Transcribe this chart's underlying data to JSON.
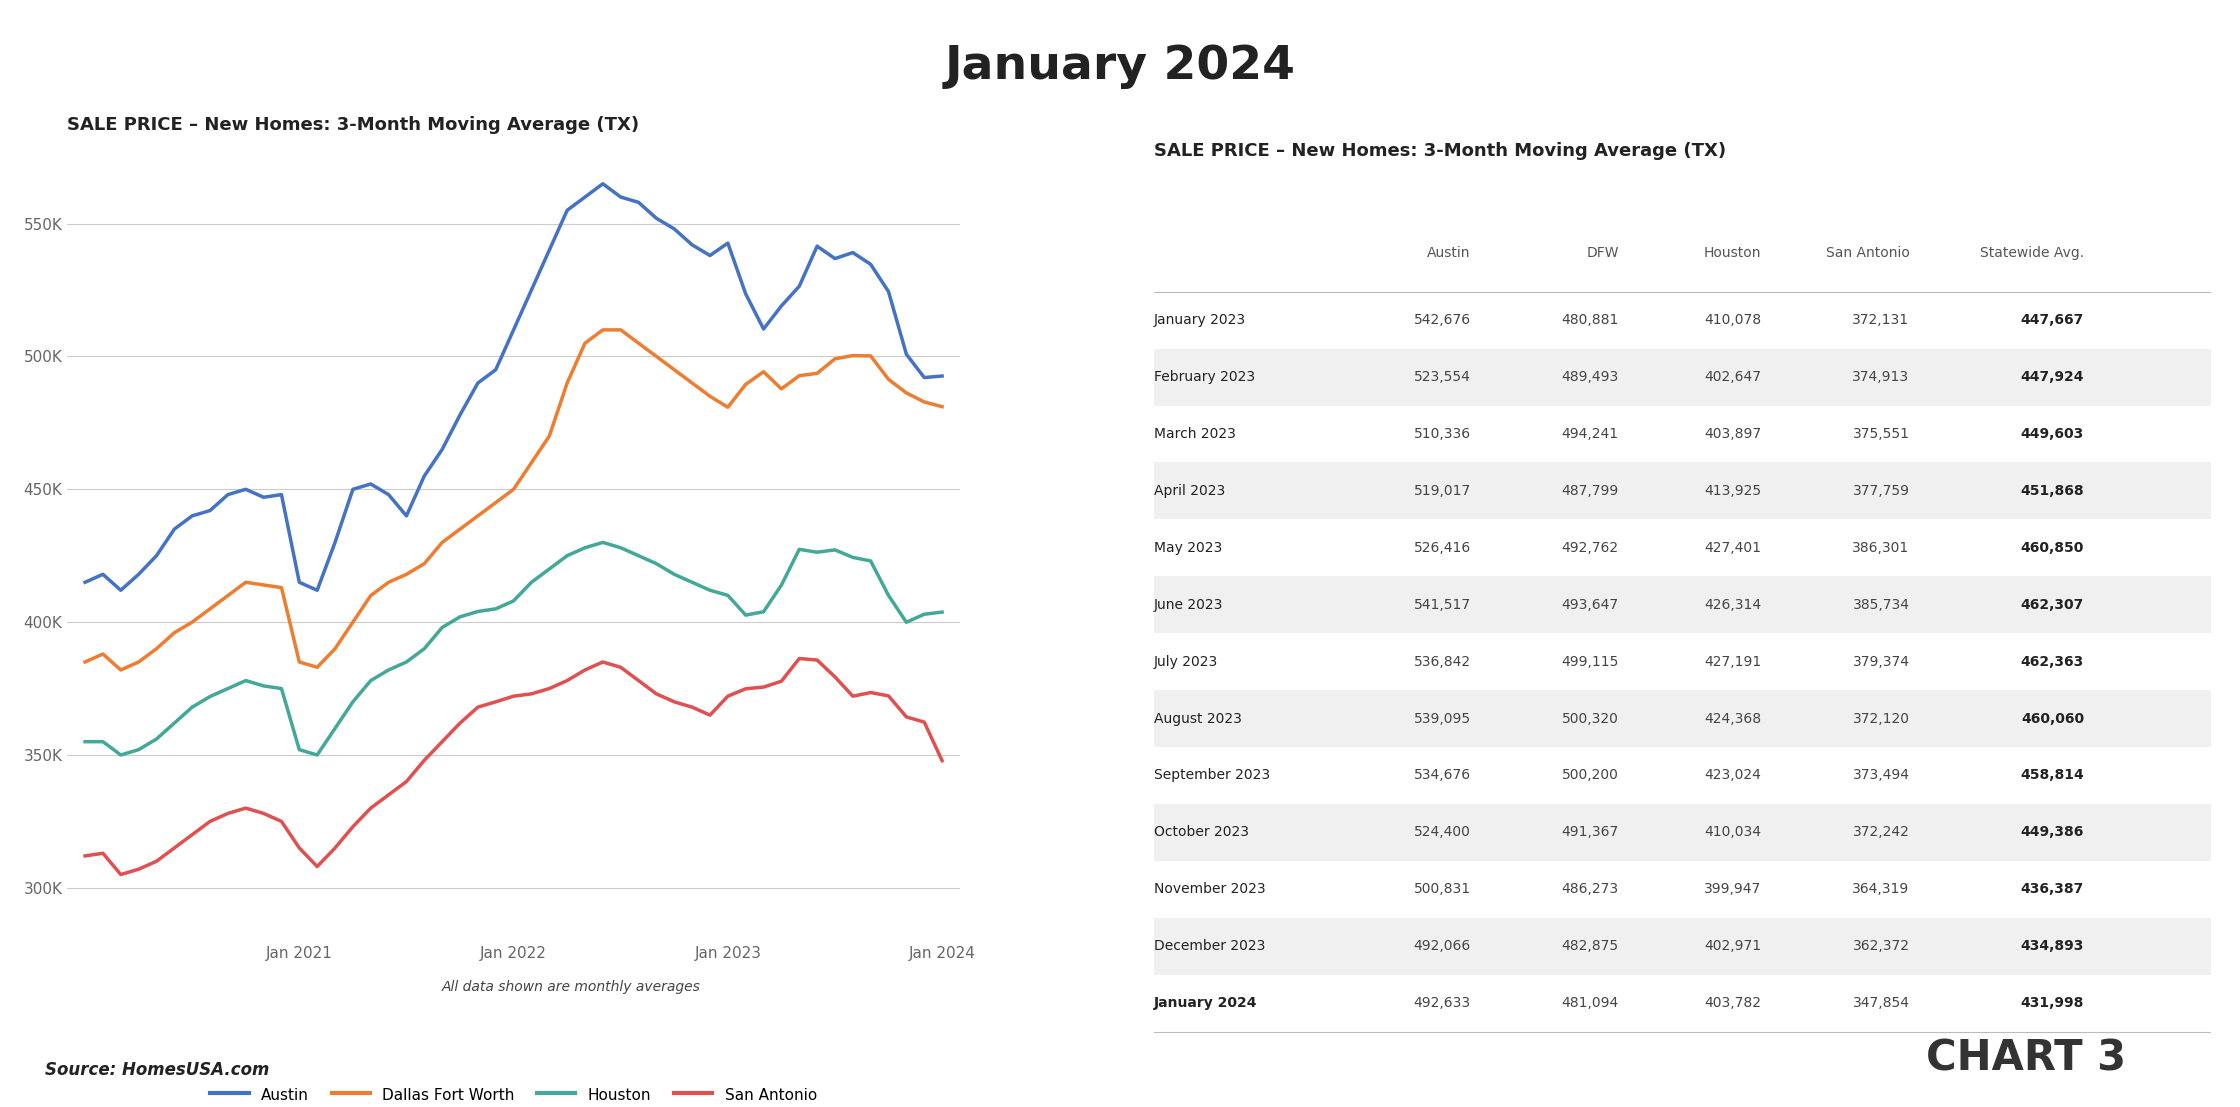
{
  "title": "January 2024",
  "chart_subtitle": "SALE PRICE – New Homes: 3-Month Moving Average (TX)",
  "table_subtitle": "SALE PRICE – New Homes: 3-Month Moving Average (TX)",
  "source": "Source: HomesUSA.com",
  "chart3_label": "CHART 3",
  "legend_items": [
    "Austin",
    "Dallas Fort Worth",
    "Houston",
    "San Antonio"
  ],
  "line_colors": {
    "Austin": "#4472C4",
    "Dallas Fort Worth": "#ED7D31",
    "Houston": "#44A899",
    "San Antonio": "#E05050"
  },
  "footnote": "All data shown are monthly averages",
  "austin": [
    415000,
    418000,
    412000,
    418000,
    425000,
    435000,
    440000,
    442000,
    448000,
    450000,
    447000,
    448000,
    415000,
    412000,
    430000,
    450000,
    452000,
    448000,
    440000,
    455000,
    465000,
    478000,
    490000,
    495000,
    510000,
    525000,
    540000,
    555000,
    560000,
    565000,
    560000,
    558000,
    552000,
    548000,
    542000,
    538000,
    542676,
    523554,
    510336,
    519017,
    526416,
    541517,
    536842,
    539095,
    534676,
    524400,
    500831,
    492066,
    492633
  ],
  "dfw": [
    385000,
    388000,
    382000,
    385000,
    390000,
    396000,
    400000,
    405000,
    410000,
    415000,
    414000,
    413000,
    385000,
    383000,
    390000,
    400000,
    410000,
    415000,
    418000,
    422000,
    430000,
    435000,
    440000,
    445000,
    450000,
    460000,
    470000,
    490000,
    505000,
    510000,
    510000,
    505000,
    500000,
    495000,
    490000,
    485000,
    480881,
    489493,
    494241,
    487799,
    492762,
    493647,
    499115,
    500320,
    500200,
    491367,
    486273,
    482875,
    481094
  ],
  "houston": [
    355000,
    355000,
    350000,
    352000,
    356000,
    362000,
    368000,
    372000,
    375000,
    378000,
    376000,
    375000,
    352000,
    350000,
    360000,
    370000,
    378000,
    382000,
    385000,
    390000,
    398000,
    402000,
    404000,
    405000,
    408000,
    415000,
    420000,
    425000,
    428000,
    430000,
    428000,
    425000,
    422000,
    418000,
    415000,
    412000,
    410078,
    402647,
    403897,
    413925,
    427401,
    426314,
    427191,
    424368,
    423024,
    410034,
    399947,
    402971,
    403782
  ],
  "san_antonio": [
    312000,
    313000,
    305000,
    307000,
    310000,
    315000,
    320000,
    325000,
    328000,
    330000,
    328000,
    325000,
    315000,
    308000,
    315000,
    323000,
    330000,
    335000,
    340000,
    348000,
    355000,
    362000,
    368000,
    370000,
    372131,
    373000,
    375000,
    378000,
    382000,
    385000,
    383000,
    378000,
    373000,
    370000,
    368000,
    365000,
    372131,
    374913,
    375551,
    377759,
    386301,
    385734,
    379374,
    372120,
    373494,
    372242,
    364319,
    362372,
    347854
  ],
  "table_rows": [
    {
      "month": "January 2023",
      "austin": "542,676",
      "dfw": "480,881",
      "houston": "410,078",
      "san_antonio": "372,131",
      "statewide": "447,667"
    },
    {
      "month": "February 2023",
      "austin": "523,554",
      "dfw": "489,493",
      "houston": "402,647",
      "san_antonio": "374,913",
      "statewide": "447,924"
    },
    {
      "month": "March 2023",
      "austin": "510,336",
      "dfw": "494,241",
      "houston": "403,897",
      "san_antonio": "375,551",
      "statewide": "449,603"
    },
    {
      "month": "April 2023",
      "austin": "519,017",
      "dfw": "487,799",
      "houston": "413,925",
      "san_antonio": "377,759",
      "statewide": "451,868"
    },
    {
      "month": "May 2023",
      "austin": "526,416",
      "dfw": "492,762",
      "houston": "427,401",
      "san_antonio": "386,301",
      "statewide": "460,850"
    },
    {
      "month": "June 2023",
      "austin": "541,517",
      "dfw": "493,647",
      "houston": "426,314",
      "san_antonio": "385,734",
      "statewide": "462,307"
    },
    {
      "month": "July 2023",
      "austin": "536,842",
      "dfw": "499,115",
      "houston": "427,191",
      "san_antonio": "379,374",
      "statewide": "462,363"
    },
    {
      "month": "August 2023",
      "austin": "539,095",
      "dfw": "500,320",
      "houston": "424,368",
      "san_antonio": "372,120",
      "statewide": "460,060"
    },
    {
      "month": "September 2023",
      "austin": "534,676",
      "dfw": "500,200",
      "houston": "423,024",
      "san_antonio": "373,494",
      "statewide": "458,814"
    },
    {
      "month": "October 2023",
      "austin": "524,400",
      "dfw": "491,367",
      "houston": "410,034",
      "san_antonio": "372,242",
      "statewide": "449,386"
    },
    {
      "month": "November 2023",
      "austin": "500,831",
      "dfw": "486,273",
      "houston": "399,947",
      "san_antonio": "364,319",
      "statewide": "436,387"
    },
    {
      "month": "December 2023",
      "austin": "492,066",
      "dfw": "482,875",
      "houston": "402,971",
      "san_antonio": "362,372",
      "statewide": "434,893"
    },
    {
      "month": "January 2024",
      "austin": "492,633",
      "dfw": "481,094",
      "houston": "403,782",
      "san_antonio": "347,854",
      "statewide": "431,998"
    }
  ],
  "col_headers": [
    "",
    "Austin",
    "DFW",
    "Houston",
    "San Antonio",
    "Statewide Avg."
  ],
  "ylim": [
    280000,
    580000
  ],
  "yticks": [
    300000,
    350000,
    400000,
    450000,
    500000,
    550000
  ],
  "ytick_labels": [
    "300K",
    "350K",
    "400K",
    "450K",
    "500K",
    "550K"
  ],
  "background_color": "#FFFFFF",
  "grid_color": "#CCCCCC",
  "line_width": 2.5
}
